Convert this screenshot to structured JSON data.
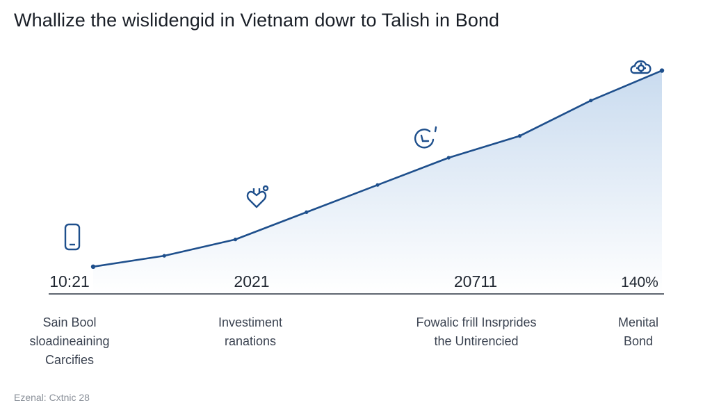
{
  "title": "Whallize the wislidengid in Vietnam dowr to Talish in Bond",
  "chart_data": {
    "type": "area",
    "x": [
      0,
      1,
      2,
      3,
      4,
      5,
      6,
      7,
      8
    ],
    "values": [
      10,
      14,
      20,
      30,
      40,
      50,
      58,
      71,
      82
    ],
    "ylim": [
      0,
      100
    ],
    "tick_labels": [
      "10:21",
      "2021",
      "20711",
      "140%"
    ],
    "categories": [
      [
        "Sain Bool",
        "sloadineaining",
        "Carcifies"
      ],
      [
        "Investiment",
        "ranations"
      ],
      [
        "Fowalic frill Insrprides",
        "the Untirencied"
      ],
      [
        "Menital",
        "Bond"
      ]
    ],
    "grid": false,
    "legend": "none"
  },
  "colors": {
    "line": "#1e4f8c",
    "fill_top": "#c9dbef",
    "fill_bottom": "#ffffff",
    "axis": "#2a3340"
  },
  "icons": [
    "phone-icon",
    "heart-plug-icon",
    "clock-icon",
    "gear-cloud-icon"
  ],
  "footnote": "Ezenal: Cxtnic 28"
}
